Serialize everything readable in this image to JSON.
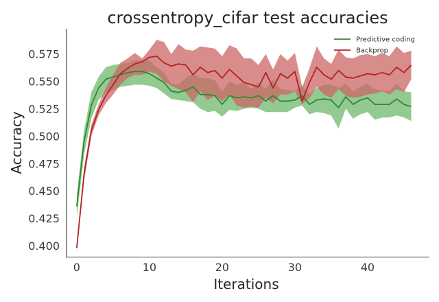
{
  "chart_data": {
    "type": "line",
    "title": "crossentropy_cifar test accuracies",
    "xlabel": "Iterations",
    "ylabel": "Accuracy",
    "xlim": [
      -1.5,
      48.5
    ],
    "ylim": [
      0.39,
      0.598
    ],
    "xticks": [
      0,
      10,
      20,
      30,
      40
    ],
    "yticks": [
      0.4,
      0.425,
      0.45,
      0.475,
      0.5,
      0.525,
      0.55,
      0.575
    ],
    "ytick_labels": [
      "0.400",
      "0.425",
      "0.450",
      "0.475",
      "0.500",
      "0.525",
      "0.550",
      "0.575"
    ],
    "legend_position": "top-right",
    "grid": false,
    "series": [
      {
        "name": "Predictive coding",
        "color": "#2f8a2f",
        "band_color": "#7fc17f",
        "x": [
          0,
          1,
          2,
          3,
          4,
          5,
          6,
          7,
          8,
          9,
          10,
          11,
          12,
          13,
          14,
          15,
          16,
          17,
          18,
          19,
          20,
          21,
          22,
          23,
          24,
          25,
          26,
          27,
          28,
          29,
          30,
          31,
          32,
          33,
          34,
          35,
          36,
          37,
          38,
          39,
          40,
          41,
          42,
          43,
          44,
          45,
          46
        ],
        "y": [
          0.436,
          0.495,
          0.528,
          0.544,
          0.552,
          0.554,
          0.556,
          0.558,
          0.559,
          0.559,
          0.557,
          0.553,
          0.549,
          0.541,
          0.54,
          0.542,
          0.545,
          0.538,
          0.538,
          0.537,
          0.529,
          0.537,
          0.535,
          0.536,
          0.535,
          0.537,
          0.532,
          0.537,
          0.532,
          0.532,
          0.533,
          0.537,
          0.529,
          0.533,
          0.534,
          0.533,
          0.526,
          0.536,
          0.529,
          0.533,
          0.535,
          0.529,
          0.529,
          0.529,
          0.534,
          0.529,
          0.527
        ],
        "lower": [
          0.426,
          0.483,
          0.516,
          0.533,
          0.54,
          0.542,
          0.545,
          0.546,
          0.547,
          0.547,
          0.546,
          0.544,
          0.539,
          0.534,
          0.533,
          0.532,
          0.531,
          0.525,
          0.522,
          0.523,
          0.518,
          0.524,
          0.523,
          0.525,
          0.526,
          0.525,
          0.522,
          0.522,
          0.522,
          0.522,
          0.526,
          0.528,
          0.52,
          0.522,
          0.521,
          0.519,
          0.507,
          0.525,
          0.516,
          0.52,
          0.522,
          0.515,
          0.517,
          0.517,
          0.519,
          0.517,
          0.514
        ],
        "upper": [
          0.446,
          0.505,
          0.54,
          0.554,
          0.563,
          0.565,
          0.566,
          0.567,
          0.569,
          0.569,
          0.569,
          0.563,
          0.558,
          0.548,
          0.547,
          0.553,
          0.557,
          0.553,
          0.553,
          0.551,
          0.541,
          0.55,
          0.547,
          0.549,
          0.543,
          0.549,
          0.543,
          0.552,
          0.543,
          0.542,
          0.541,
          0.546,
          0.538,
          0.544,
          0.547,
          0.547,
          0.544,
          0.548,
          0.541,
          0.545,
          0.548,
          0.543,
          0.542,
          0.541,
          0.548,
          0.541,
          0.54
        ]
      },
      {
        "name": "Backprop",
        "color": "#b22222",
        "band_color": "#cc6666",
        "x": [
          0,
          1,
          2,
          3,
          4,
          5,
          6,
          7,
          8,
          9,
          10,
          11,
          12,
          13,
          14,
          15,
          16,
          17,
          18,
          19,
          20,
          21,
          22,
          23,
          24,
          25,
          26,
          27,
          28,
          29,
          30,
          31,
          32,
          33,
          34,
          35,
          36,
          37,
          38,
          39,
          40,
          41,
          42,
          43,
          44,
          45,
          46
        ],
        "y": [
          0.398,
          0.465,
          0.505,
          0.524,
          0.537,
          0.547,
          0.557,
          0.562,
          0.566,
          0.568,
          0.572,
          0.573,
          0.567,
          0.564,
          0.566,
          0.565,
          0.556,
          0.563,
          0.558,
          0.56,
          0.553,
          0.561,
          0.555,
          0.549,
          0.547,
          0.545,
          0.558,
          0.544,
          0.557,
          0.553,
          0.559,
          0.532,
          0.549,
          0.563,
          0.556,
          0.552,
          0.56,
          0.554,
          0.553,
          0.555,
          0.557,
          0.556,
          0.558,
          0.556,
          0.563,
          0.558,
          0.565
        ],
        "lower": [
          0.395,
          0.459,
          0.5,
          0.519,
          0.53,
          0.538,
          0.547,
          0.553,
          0.556,
          0.556,
          0.559,
          0.557,
          0.55,
          0.546,
          0.543,
          0.54,
          0.531,
          0.541,
          0.533,
          0.537,
          0.532,
          0.538,
          0.528,
          0.526,
          0.527,
          0.526,
          0.535,
          0.53,
          0.538,
          0.538,
          0.541,
          0.529,
          0.535,
          0.545,
          0.538,
          0.535,
          0.543,
          0.537,
          0.535,
          0.536,
          0.538,
          0.539,
          0.541,
          0.538,
          0.543,
          0.54,
          0.552
        ],
        "upper": [
          0.401,
          0.471,
          0.51,
          0.529,
          0.544,
          0.556,
          0.567,
          0.571,
          0.576,
          0.571,
          0.579,
          0.588,
          0.586,
          0.575,
          0.584,
          0.579,
          0.578,
          0.582,
          0.581,
          0.58,
          0.573,
          0.583,
          0.58,
          0.571,
          0.571,
          0.565,
          0.575,
          0.561,
          0.575,
          0.569,
          0.576,
          0.545,
          0.562,
          0.582,
          0.571,
          0.566,
          0.579,
          0.572,
          0.571,
          0.574,
          0.575,
          0.573,
          0.576,
          0.573,
          0.582,
          0.576,
          0.578
        ]
      }
    ]
  }
}
